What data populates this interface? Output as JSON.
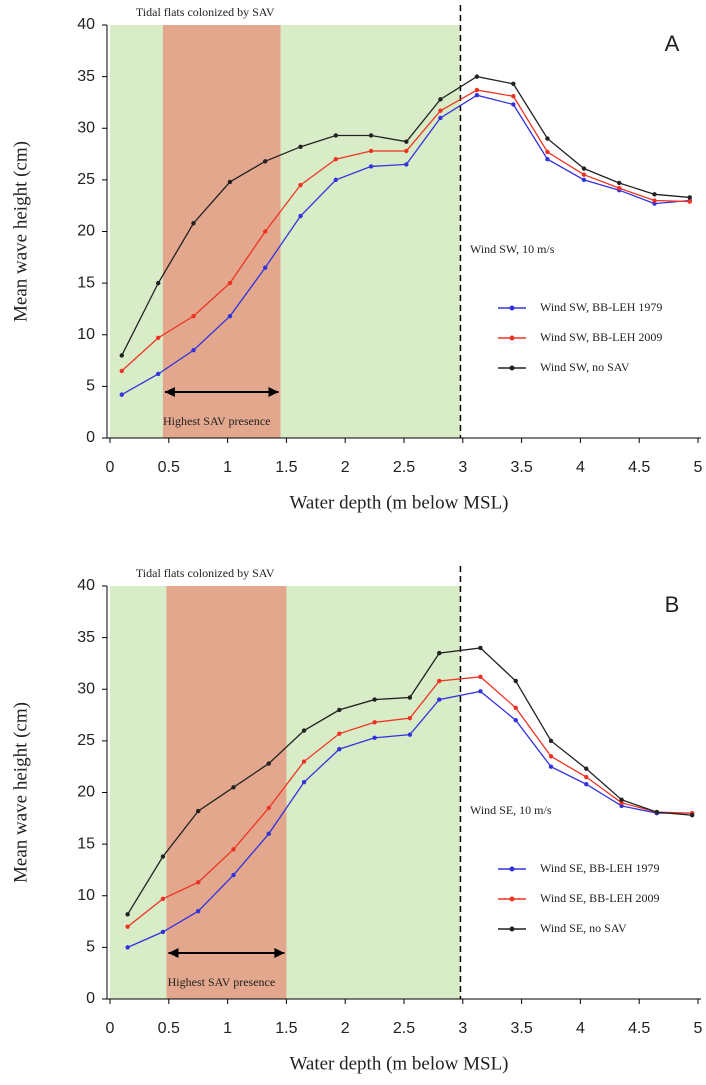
{
  "chart_data": [
    {
      "type": "line",
      "panel": "A",
      "annotation": "Wind SW, 10 m/s",
      "x_label": "Water depth (m below MSL)",
      "y_label": "Mean wave height (cm)",
      "xlim": [
        0,
        5
      ],
      "ylim": [
        0,
        40
      ],
      "xticks": [
        0,
        0.5,
        1,
        1.5,
        2,
        2.5,
        3,
        3.5,
        4,
        4.5,
        5
      ],
      "yticks": [
        0,
        5,
        10,
        15,
        20,
        25,
        30,
        35,
        40
      ],
      "regions": [
        {
          "label": "Tidal flats colonized by SAV",
          "x": [
            0,
            2.98
          ],
          "color": "#d9ecc8"
        },
        {
          "label": "Highest SAV presence",
          "x": [
            0.45,
            1.45
          ],
          "color": "#e2a78c"
        }
      ],
      "divider": 2.98,
      "x": [
        0.1,
        0.41,
        0.71,
        1.02,
        1.32,
        1.62,
        1.92,
        2.22,
        2.52,
        2.81,
        3.12,
        3.43,
        3.72,
        4.03,
        4.33,
        4.63,
        4.93
      ],
      "series": [
        {
          "name": "Wind SW, BB-LEH 1979",
          "color": "#3333dd",
          "values": [
            4.2,
            6.2,
            8.5,
            11.8,
            16.5,
            21.5,
            25,
            26.3,
            26.5,
            31,
            33.2,
            32.3,
            27,
            25,
            24,
            22.7,
            23
          ]
        },
        {
          "name": "Wind SW, BB-LEH 2009",
          "color": "#ee3322",
          "values": [
            6.5,
            9.7,
            11.8,
            15,
            20,
            24.5,
            27,
            27.8,
            27.8,
            31.7,
            33.7,
            33.1,
            27.7,
            25.5,
            24.2,
            23,
            22.9
          ]
        },
        {
          "name": "Wind SW, no SAV",
          "color": "#222222",
          "values": [
            8,
            15,
            20.8,
            24.8,
            26.8,
            28.2,
            29.3,
            29.3,
            28.7,
            32.8,
            35,
            34.3,
            29,
            26.1,
            24.7,
            23.6,
            23.3
          ]
        }
      ]
    },
    {
      "type": "line",
      "panel": "B",
      "annotation": "Wind SE, 10 m/s",
      "x_label": "Water depth (m below MSL)",
      "y_label": "Mean wave height (cm)",
      "xlim": [
        0,
        5
      ],
      "ylim": [
        0,
        40
      ],
      "xticks": [
        0,
        0.5,
        1,
        1.5,
        2,
        2.5,
        3,
        3.5,
        4,
        4.5,
        5
      ],
      "yticks": [
        0,
        5,
        10,
        15,
        20,
        25,
        30,
        35,
        40
      ],
      "regions": [
        {
          "label": "Tidal flats colonized by SAV",
          "x": [
            0,
            2.98
          ],
          "color": "#d9ecc8"
        },
        {
          "label": "Highest SAV presence",
          "x": [
            0.48,
            1.5
          ],
          "color": "#e2a78c"
        }
      ],
      "divider": 2.98,
      "x": [
        0.15,
        0.45,
        0.75,
        1.05,
        1.35,
        1.65,
        1.95,
        2.25,
        2.55,
        2.8,
        3.15,
        3.45,
        3.75,
        4.05,
        4.35,
        4.65,
        4.95
      ],
      "series": [
        {
          "name": "Wind SE, BB-LEH 1979",
          "color": "#3333dd",
          "values": [
            5,
            6.5,
            8.5,
            12,
            16,
            21,
            24.2,
            25.3,
            25.6,
            29,
            29.8,
            27,
            22.5,
            20.8,
            18.7,
            18,
            18
          ]
        },
        {
          "name": "Wind SE, BB-LEH 2009",
          "color": "#ee3322",
          "values": [
            7,
            9.7,
            11.3,
            14.5,
            18.5,
            23,
            25.7,
            26.8,
            27.2,
            30.8,
            31.2,
            28.2,
            23.5,
            21.5,
            19,
            18.1,
            18
          ]
        },
        {
          "name": "Wind SE, no SAV",
          "color": "#222222",
          "values": [
            8.2,
            13.8,
            18.2,
            20.5,
            22.8,
            26,
            28,
            29,
            29.2,
            33.5,
            34,
            30.8,
            25,
            22.3,
            19.3,
            18.1,
            17.8
          ]
        }
      ]
    }
  ]
}
